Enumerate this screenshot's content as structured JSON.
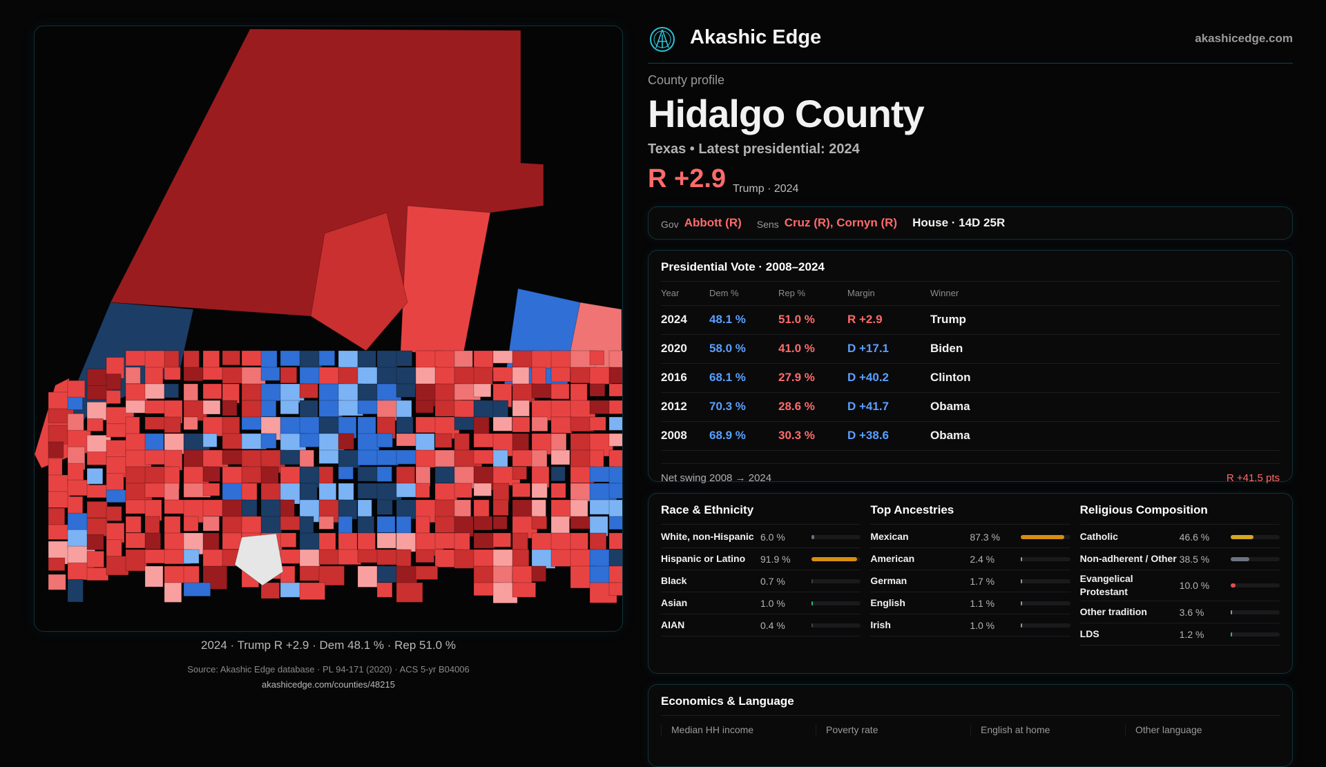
{
  "brand": {
    "name": "Akashic Edge",
    "site": "akashicedge.com",
    "logo": "akashic-logo-icon"
  },
  "profile": {
    "eyebrow": "County profile",
    "title": "Hidalgo County",
    "subtitle": "Texas • Latest presidential: 2024",
    "margin": "R +2.9",
    "margin_sub": "Trump · 2024"
  },
  "officials": {
    "gov_label": "Gov",
    "gov": "Abbott (R)",
    "sens_label": "Sens",
    "sens": "Cruz (R), Cornyn (R)",
    "house": "House · 14D 25R"
  },
  "map": {
    "caption": "2024 · Trump R +2.9 · Dem 48.1 % · Rep 51.0 %",
    "colors": {
      "dark_red": "#9b1c1f",
      "red": "#c9302f",
      "light_red": "#e84343",
      "pink": "#f07474",
      "pale": "#f8a0a0",
      "navy": "#1c3d66",
      "blue": "#2f6fd6",
      "light_blue": "#7bb3f5",
      "white": "#e6e6e6"
    }
  },
  "presidential": {
    "title": "Presidential Vote · 2008–2024",
    "headers": [
      "Year",
      "Dem %",
      "Rep %",
      "Margin",
      "Winner"
    ],
    "rows": [
      {
        "year": "2024",
        "dem": "48.1 %",
        "rep": "51.0 %",
        "margin": "R +2.9",
        "party": "R",
        "winner": "Trump"
      },
      {
        "year": "2020",
        "dem": "58.0 %",
        "rep": "41.0 %",
        "margin": "D +17.1",
        "party": "D",
        "winner": "Biden"
      },
      {
        "year": "2016",
        "dem": "68.1 %",
        "rep": "27.9 %",
        "margin": "D +40.2",
        "party": "D",
        "winner": "Clinton"
      },
      {
        "year": "2012",
        "dem": "70.3 %",
        "rep": "28.6 %",
        "margin": "D +41.7",
        "party": "D",
        "winner": "Obama"
      },
      {
        "year": "2008",
        "dem": "68.9 %",
        "rep": "30.3 %",
        "margin": "D +38.6",
        "party": "D",
        "winner": "Obama"
      }
    ],
    "swing_label": "Net swing 2008 → 2024",
    "swing_value": "R +41.5 pts"
  },
  "demographics": [
    {
      "title": "Race & Ethnicity",
      "items": [
        {
          "name": "White, non-Hispanic",
          "value": "6.0 %",
          "pct": 6.0,
          "color": "#6b7280"
        },
        {
          "name": "Hispanic or Latino",
          "value": "91.9 %",
          "pct": 91.9,
          "color": "#d98e0f"
        },
        {
          "name": "Black",
          "value": "0.7 %",
          "pct": 0.7,
          "color": "#444"
        },
        {
          "name": "Asian",
          "value": "1.0 %",
          "pct": 1.0,
          "color": "#2fb58a"
        },
        {
          "name": "AIAN",
          "value": "0.4 %",
          "pct": 0.4,
          "color": "#444"
        }
      ]
    },
    {
      "title": "Top Ancestries",
      "items": [
        {
          "name": "Mexican",
          "value": "87.3 %",
          "pct": 87.3,
          "color": "#d98e0f"
        },
        {
          "name": "American",
          "value": "2.4 %",
          "pct": 2.4,
          "color": "#8a9bb0"
        },
        {
          "name": "German",
          "value": "1.7 %",
          "pct": 1.7,
          "color": "#8a9bb0"
        },
        {
          "name": "English",
          "value": "1.1 %",
          "pct": 1.1,
          "color": "#8a9bb0"
        },
        {
          "name": "Irish",
          "value": "1.0 %",
          "pct": 1.0,
          "color": "#8a9bb0"
        }
      ]
    },
    {
      "title": "Religious Composition",
      "items": [
        {
          "name": "Catholic",
          "value": "46.6 %",
          "pct": 46.6,
          "color": "#d4a820"
        },
        {
          "name": "Non-adherent / Other",
          "value": "38.5 %",
          "pct": 38.5,
          "color": "#6b7280"
        },
        {
          "name": "Evangelical Protestant",
          "value": "10.0 %",
          "pct": 10.0,
          "color": "#e05050"
        },
        {
          "name": "Other tradition",
          "value": "3.6 %",
          "pct": 3.6,
          "color": "#8a9bb0"
        },
        {
          "name": "LDS",
          "value": "1.2 %",
          "pct": 1.2,
          "color": "#2fb58a"
        }
      ]
    }
  ],
  "economics": {
    "title": "Economics & Language",
    "stats": [
      "Median HH income",
      "Poverty rate",
      "English at home",
      "Other language"
    ]
  },
  "footer": {
    "source": "Source: Akashic Edge database · PL 94-171 (2020) · ACS 5-yr B04006",
    "url": "akashicedge.com/counties/48215"
  }
}
